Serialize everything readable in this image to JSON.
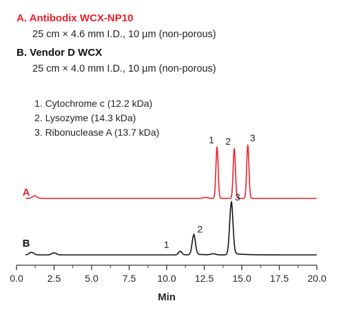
{
  "legend": {
    "a_label": "A.  Antibodix WCX-NP10",
    "a_desc": "25 cm × 4.6 mm I.D., 10 µm (non-porous)",
    "b_label": "B.  Vendor D WCX",
    "b_desc": "25 cm × 4.0 mm I.D., 10 µm (non-porous)",
    "peaks": [
      "1. Cytochrome c (12.2 kDa)",
      "2.  Lysozyme (14.3 kDa)",
      "3.  Ribonuclease A (13.7 kDa)"
    ]
  },
  "colors": {
    "trace_a": "#e8202a",
    "trace_b": "#111111",
    "axis": "#333333"
  },
  "chart_data": {
    "type": "line",
    "xlabel": "Min",
    "xlim": [
      0,
      20
    ],
    "xticks": [
      "0.0",
      "2.5",
      "5.0",
      "7.5",
      "10.0",
      "12.5",
      "15.0",
      "17.5",
      "20.0"
    ],
    "grid": false,
    "series": [
      {
        "name": "A",
        "peaks": [
          {
            "label": "1",
            "time": 13.35,
            "height": 1.0
          },
          {
            "label": "2",
            "time": 14.5,
            "height": 0.97
          },
          {
            "label": "3",
            "time": 15.4,
            "height": 1.04
          }
        ],
        "minor_features": [
          {
            "time": 1.2,
            "height": 0.05
          },
          {
            "time": 12.6,
            "height": 0.02
          }
        ]
      },
      {
        "name": "B",
        "peaks": [
          {
            "label": "1",
            "time": 10.9,
            "height": 0.07
          },
          {
            "label": "2",
            "time": 11.8,
            "height": 0.38
          },
          {
            "label": "3",
            "time": 14.3,
            "height": 1.0
          }
        ],
        "minor_features": [
          {
            "time": 1.0,
            "height": 0.05
          },
          {
            "time": 2.5,
            "height": 0.04
          },
          {
            "time": 13.1,
            "height": 0.02
          }
        ]
      }
    ]
  }
}
